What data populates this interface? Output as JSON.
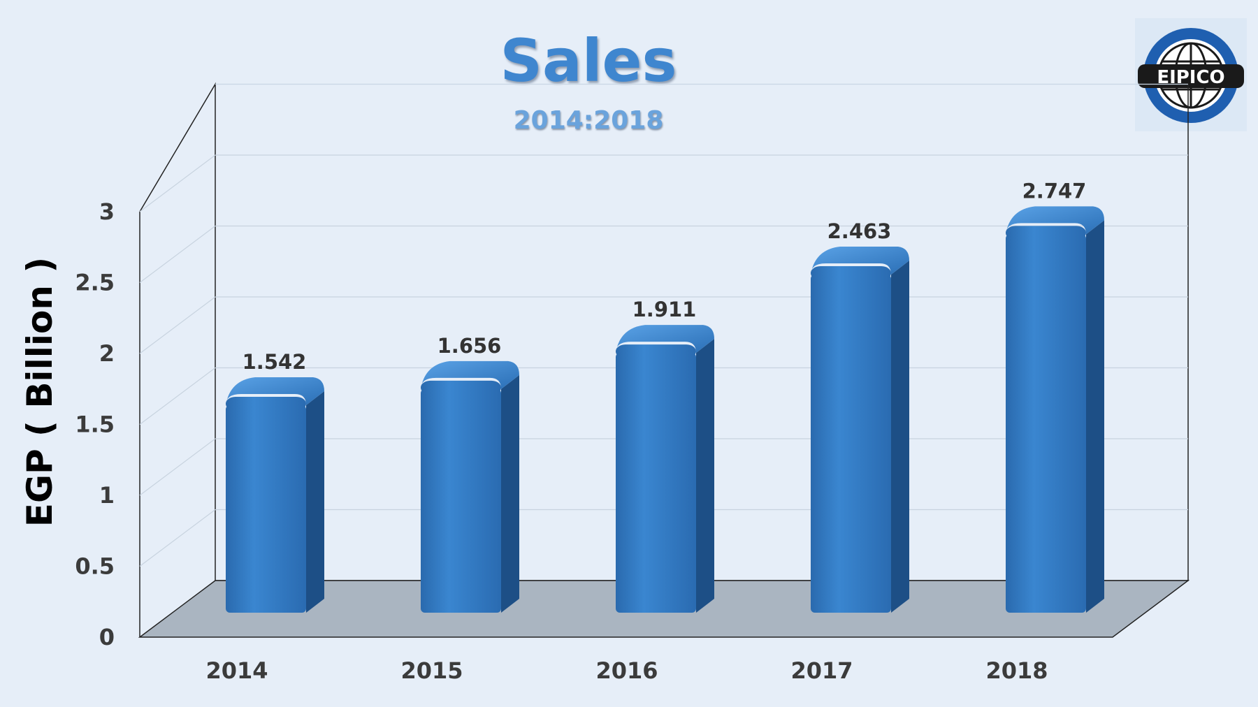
{
  "chart_data": {
    "type": "bar",
    "title": "Sales",
    "subtitle": "2014:2018",
    "ylabel": "EGP ( Billion )",
    "xlabel": "",
    "categories": [
      "2014",
      "2015",
      "2016",
      "2017",
      "2018"
    ],
    "values": [
      1.542,
      1.656,
      1.911,
      2.463,
      2.747
    ],
    "value_labels": [
      "1.542",
      "1.656",
      "1.911",
      "2.463",
      "2.747"
    ],
    "y_ticks": [
      "0",
      "0.5",
      "1",
      "1.5",
      "2",
      "2.5",
      "3"
    ],
    "ylim": [
      0,
      3
    ],
    "grid": true,
    "legend": "none",
    "bar_color": "#2f75bb",
    "bar_side_color": "#1d4f86",
    "floor_color": "#aab5c1"
  },
  "logo": {
    "text": "EIPICO",
    "ring_color": "#1f5fb0"
  }
}
